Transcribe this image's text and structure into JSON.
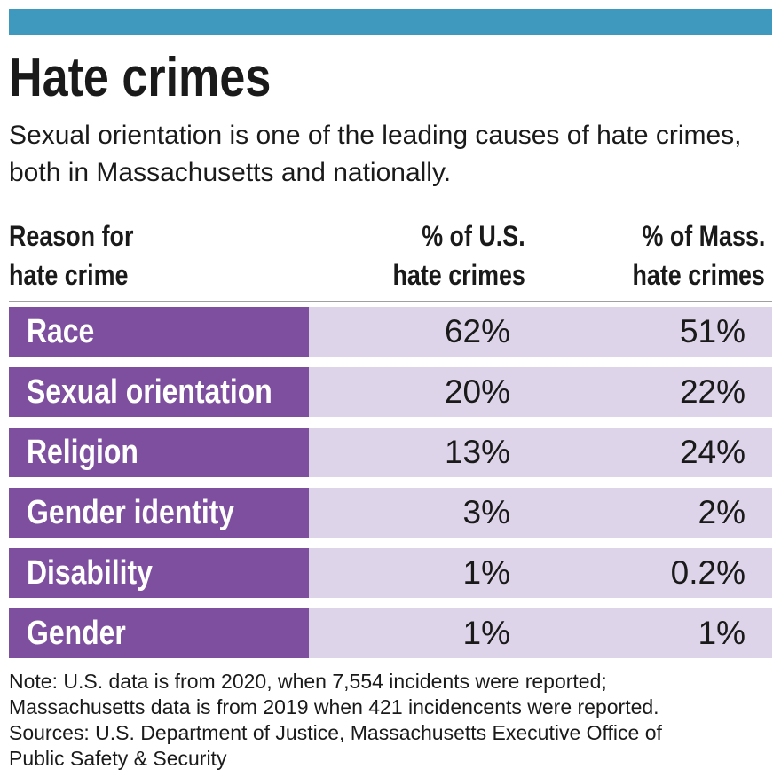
{
  "title": "Hate crimes",
  "subtitle": "Sexual orientation is one of the leading causes of hate crimes, both in Massachusetts and nationally.",
  "colors": {
    "top_bar": "#3f98bd",
    "label_bg": "#7f4f9f",
    "row_bg": "#ded4ea"
  },
  "chart_data": {
    "type": "table",
    "columns": [
      "Reason for hate crime",
      "% of U.S. hate crimes",
      "% of Mass. hate crimes"
    ],
    "header_lines": [
      [
        "Reason for",
        "hate crime"
      ],
      [
        "% of U.S.",
        "hate crimes"
      ],
      [
        "% of Mass.",
        "hate crimes"
      ]
    ],
    "rows": [
      {
        "reason": "Race",
        "us": "62%",
        "mass": "51%"
      },
      {
        "reason": "Sexual orientation",
        "us": "20%",
        "mass": "22%"
      },
      {
        "reason": "Religion",
        "us": "13%",
        "mass": "24%"
      },
      {
        "reason": "Gender identity",
        "us": "3%",
        "mass": "2%"
      },
      {
        "reason": "Disability",
        "us": "1%",
        "mass": "0.2%"
      },
      {
        "reason": "Gender",
        "us": "1%",
        "mass": "1%"
      }
    ]
  },
  "notes": [
    "Note: U.S. data is from 2020, when 7,554 incidents were reported;",
    "Massachusetts data is from 2019 when 421 incidencents were reported.",
    "Sources: U.S. Department of Justice, Massachusetts Executive Office of",
    "Public Safety & Security"
  ]
}
